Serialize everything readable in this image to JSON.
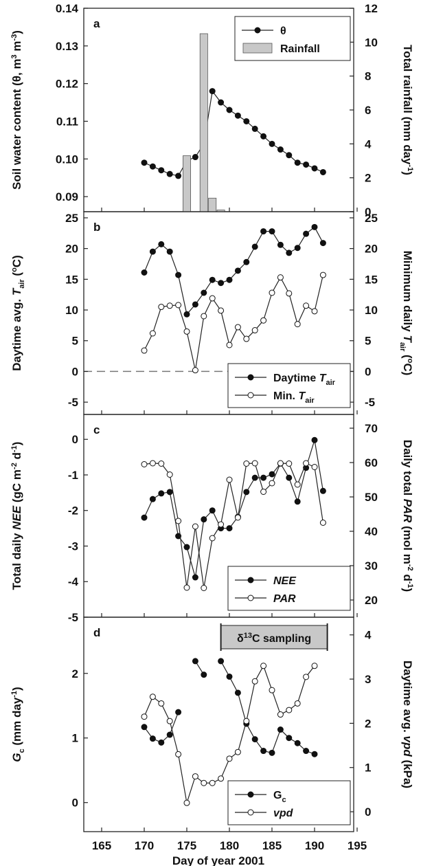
{
  "xlabel": "Day of year 2001",
  "x_ticks": [
    "165",
    "170",
    "175",
    "180",
    "185",
    "190",
    "195"
  ],
  "chart_data": [
    {
      "id": "a",
      "panel_letter": "a",
      "type": "line+bar",
      "xlim": [
        165,
        195
      ],
      "left_axis": {
        "label": "Soil water content (θ, m³ m⁻³)",
        "label_parts": [
          [
            "Soil water content (θ, m",
            ""
          ],
          [
            "3",
            "sup"
          ],
          [
            " m",
            ""
          ],
          [
            "-3",
            "sup"
          ],
          [
            ")",
            ""
          ]
        ],
        "ylim": [
          0.086,
          0.14
        ],
        "ticks": [
          "0.09",
          "0.10",
          "0.11",
          "0.12",
          "0.13",
          "0.14"
        ]
      },
      "right_axis": {
        "label": "Total rainfall (mm day⁻¹)",
        "label_parts": [
          [
            "Total rainfall (mm day",
            ""
          ],
          [
            "-1",
            "sup"
          ],
          [
            ")",
            ""
          ]
        ],
        "ylim": [
          0,
          12
        ],
        "ticks": [
          "0",
          "2",
          "4",
          "6",
          "8",
          "10",
          "12"
        ]
      },
      "series": [
        {
          "name": "θ",
          "axis": "left",
          "marker": "filled",
          "x": [
            170,
            171,
            172,
            173,
            174,
            175,
            176,
            177,
            178,
            179,
            180,
            181,
            182,
            183,
            184,
            185,
            186,
            187,
            188,
            189,
            190,
            191
          ],
          "values": [
            0.099,
            0.098,
            0.097,
            0.096,
            0.0955,
            0.0995,
            0.1005,
            0.104,
            0.118,
            0.115,
            0.113,
            0.1115,
            0.11,
            0.108,
            0.106,
            0.104,
            0.1025,
            0.101,
            0.099,
            0.0985,
            0.0975,
            0.0965
          ]
        },
        {
          "name": "Rainfall",
          "axis": "right",
          "type": "bar",
          "x": [
            175,
            177,
            178,
            179
          ],
          "values": [
            3.3,
            10.5,
            0.8,
            0.1
          ]
        }
      ],
      "legend": {
        "position": "top-right",
        "items": [
          {
            "label_parts": [
              [
                "θ",
                ""
              ]
            ],
            "marker": "filled"
          },
          {
            "label_parts": [
              [
                "Rainfall",
                ""
              ]
            ],
            "marker": "bar"
          }
        ]
      }
    },
    {
      "id": "b",
      "panel_letter": "b",
      "type": "line",
      "xlim": [
        165,
        195
      ],
      "left_axis": {
        "label": "Daytime avg. Tair (°C)",
        "label_parts": [
          [
            "Daytime avg. ",
            ""
          ],
          [
            "T",
            "ital"
          ],
          [
            "air",
            "sub"
          ],
          [
            " (",
            ""
          ],
          [
            "o",
            "sup"
          ],
          [
            "C)",
            ""
          ]
        ],
        "ylim": [
          -7,
          26
        ],
        "ticks": [
          "-5",
          "0",
          "5",
          "10",
          "15",
          "20",
          "25"
        ]
      },
      "right_axis": {
        "label": "Minimum daily Tair (°C)",
        "label_parts": [
          [
            "Minimum daily ",
            ""
          ],
          [
            "T",
            "ital"
          ],
          [
            "air",
            "sub"
          ],
          [
            " (",
            ""
          ],
          [
            "o",
            "sup"
          ],
          [
            "C)",
            ""
          ]
        ],
        "ylim": [
          -7,
          26
        ],
        "ticks": [
          "-5",
          "0",
          "5",
          "10",
          "15",
          "20",
          "25"
        ]
      },
      "reference_line": {
        "y": 0,
        "style": "dashed"
      },
      "series": [
        {
          "name": "Daytime Tair",
          "marker": "filled",
          "x": [
            170,
            171,
            172,
            173,
            174,
            175,
            176,
            177,
            178,
            179,
            180,
            181,
            182,
            183,
            184,
            185,
            186,
            187,
            188,
            189,
            190,
            191
          ],
          "values": [
            16.1,
            19.5,
            20.7,
            19.5,
            15.7,
            9.3,
            10.9,
            12.8,
            14.9,
            14.4,
            14.9,
            16.4,
            17.8,
            20.3,
            22.8,
            22.8,
            20.6,
            19.3,
            20.1,
            22.4,
            23.5,
            20.9
          ]
        },
        {
          "name": "Min. Tair",
          "marker": "open",
          "x": [
            170,
            171,
            172,
            173,
            174,
            175,
            176,
            177,
            178,
            179,
            180,
            181,
            182,
            183,
            184,
            185,
            186,
            187,
            188,
            189,
            190,
            191
          ],
          "values": [
            3.4,
            6.2,
            10.5,
            10.7,
            10.8,
            6.5,
            0.2,
            9.0,
            11.9,
            9.9,
            4.3,
            7.2,
            5.3,
            6.7,
            8.3,
            12.8,
            15.3,
            12.7,
            7.7,
            10.7,
            9.8,
            15.7
          ]
        }
      ],
      "legend": {
        "position": "bottom-right",
        "items": [
          {
            "label_parts": [
              [
                "Daytime ",
                ""
              ],
              [
                "T",
                "ital"
              ],
              [
                "air",
                "sub"
              ]
            ],
            "marker": "filled"
          },
          {
            "label_parts": [
              [
                "Min. ",
                ""
              ],
              [
                "T",
                "ital"
              ],
              [
                "air",
                "sub"
              ]
            ],
            "marker": "open"
          }
        ]
      }
    },
    {
      "id": "c",
      "panel_letter": "c",
      "type": "line",
      "xlim": [
        165,
        195
      ],
      "left_axis": {
        "label": "Total daily NEE (gC m⁻² d⁻¹)",
        "label_parts": [
          [
            "Total daily ",
            ""
          ],
          [
            "NEE",
            "ital"
          ],
          [
            " (gC m",
            ""
          ],
          [
            "-2",
            "sup"
          ],
          [
            " d",
            ""
          ],
          [
            "-1",
            "sup"
          ],
          [
            ")",
            ""
          ]
        ],
        "ylim": [
          -5,
          0.7
        ],
        "ticks": [
          "-5",
          "-4",
          "-3",
          "-2",
          "-1",
          "0"
        ]
      },
      "right_axis": {
        "label": "Daily total PAR (mol m⁻² d⁻¹)",
        "label_parts": [
          [
            "Daily total ",
            ""
          ],
          [
            "PAR",
            "ital"
          ],
          [
            " (mol m",
            ""
          ],
          [
            "-2",
            "sup"
          ],
          [
            " d",
            ""
          ],
          [
            "-1",
            "sup"
          ],
          [
            ")",
            ""
          ]
        ],
        "ylim": [
          15,
          74
        ],
        "ticks": [
          "20",
          "30",
          "40",
          "50",
          "60",
          "70"
        ]
      },
      "series": [
        {
          "name": "NEE",
          "axis": "left",
          "marker": "filled",
          "x": [
            170,
            171,
            172,
            173,
            174,
            175,
            176,
            177,
            178,
            179,
            180,
            181,
            182,
            183,
            184,
            185,
            186,
            187,
            188,
            189,
            190,
            191
          ],
          "values": [
            -2.2,
            -1.68,
            -1.52,
            -1.48,
            -2.72,
            -3.03,
            -3.88,
            -2.25,
            -2.0,
            -2.5,
            -2.5,
            -2.18,
            -1.48,
            -1.08,
            -1.08,
            -0.98,
            -0.68,
            -1.08,
            -1.75,
            -0.8,
            -0.02,
            -1.45
          ]
        },
        {
          "name": "PAR",
          "axis": "right",
          "marker": "open",
          "x": [
            170,
            171,
            172,
            173,
            174,
            175,
            176,
            177,
            178,
            179,
            180,
            181,
            182,
            183,
            184,
            185,
            186,
            187,
            188,
            189,
            190,
            191
          ],
          "values": [
            59.5,
            59.8,
            59.7,
            56.5,
            43.0,
            23.6,
            41.4,
            23.5,
            38.0,
            42.0,
            55.0,
            44.0,
            59.7,
            59.8,
            51.5,
            54.0,
            59.8,
            59.7,
            53.6,
            59.8,
            58.7,
            42.5
          ]
        }
      ],
      "legend": {
        "position": "bottom-right",
        "items": [
          {
            "label_parts": [
              [
                "NEE",
                "ital"
              ]
            ],
            "marker": "filled"
          },
          {
            "label_parts": [
              [
                "PAR",
                "ital"
              ]
            ],
            "marker": "open"
          }
        ]
      }
    },
    {
      "id": "d",
      "panel_letter": "d",
      "type": "line",
      "xlim": [
        165,
        195
      ],
      "left_axis": {
        "label": "Gc (mm day⁻¹)",
        "label_parts": [
          [
            "G",
            "ital"
          ],
          [
            "c",
            "sub"
          ],
          [
            " (mm day",
            ""
          ],
          [
            "-1",
            "sup"
          ],
          [
            ")",
            ""
          ]
        ],
        "ylim": [
          -0.45,
          2.87
        ],
        "ticks": [
          "0",
          "1",
          "2"
        ]
      },
      "right_axis": {
        "label": "Daytime avg. vpd (kPa)",
        "label_parts": [
          [
            "Daytime avg. ",
            ""
          ],
          [
            "vpd",
            "ital"
          ],
          [
            " (kPa)",
            ""
          ]
        ],
        "ylim": [
          -0.45,
          4.4
        ],
        "ticks": [
          "0",
          "1",
          "2",
          "3",
          "4"
        ]
      },
      "annotation": {
        "label_parts": [
          [
            "δ",
            ""
          ],
          [
            "13",
            "sup"
          ],
          [
            "C sampling",
            ""
          ]
        ],
        "x_start": 179,
        "x_end": 191.5,
        "color": "#c8c8c8"
      },
      "series": [
        {
          "name": "Gc",
          "axis": "left",
          "marker": "filled",
          "x": [
            170,
            171,
            172,
            173,
            174,
            null,
            176,
            177,
            null,
            179,
            180,
            181,
            182,
            183,
            184,
            185,
            186,
            187,
            188,
            189,
            190
          ],
          "values": [
            1.17,
            0.99,
            0.93,
            1.05,
            1.4,
            null,
            2.19,
            1.98,
            null,
            2.19,
            1.95,
            1.7,
            1.22,
            0.98,
            0.8,
            0.77,
            1.13,
            1.0,
            0.92,
            0.8,
            0.75
          ]
        },
        {
          "name": "vpd",
          "axis": "right",
          "marker": "open",
          "x": [
            170,
            171,
            172,
            173,
            174,
            175,
            176,
            177,
            178,
            179,
            180,
            181,
            182,
            183,
            184,
            185,
            186,
            187,
            188,
            189,
            190
          ],
          "values": [
            2.15,
            2.6,
            2.45,
            2.05,
            1.3,
            0.2,
            0.8,
            0.65,
            0.65,
            0.75,
            1.2,
            1.35,
            2.05,
            2.95,
            3.3,
            2.75,
            2.2,
            2.3,
            2.45,
            3.05,
            3.3
          ]
        }
      ],
      "legend": {
        "position": "bottom-right",
        "items": [
          {
            "label_parts": [
              [
                "G",
                ""
              ],
              [
                "c",
                "sub"
              ]
            ],
            "marker": "filled"
          },
          {
            "label_parts": [
              [
                "vpd",
                "ital"
              ]
            ],
            "marker": "open"
          }
        ]
      }
    }
  ]
}
